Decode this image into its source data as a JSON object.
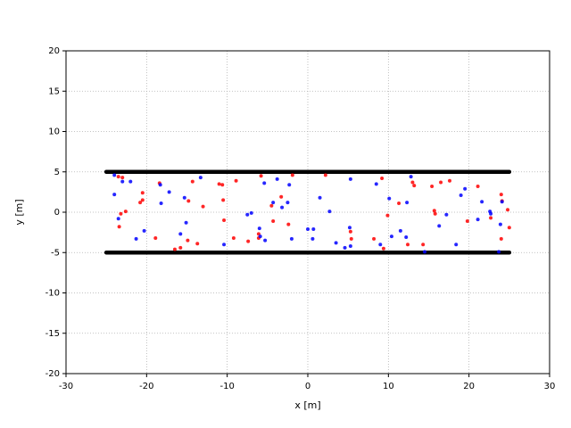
{
  "chart_data": {
    "type": "scatter",
    "xlabel": "x [m]",
    "ylabel": "y [m]",
    "xlim": [
      -30,
      30
    ],
    "ylim": [
      -20,
      20
    ],
    "xticks": [
      -30,
      -20,
      -10,
      0,
      10,
      20,
      30
    ],
    "yticks": [
      -20,
      -15,
      -10,
      -5,
      0,
      5,
      10,
      15,
      20
    ],
    "grid": true,
    "series": [
      {
        "color": "#000000",
        "line": true,
        "x": [
          -25,
          25
        ],
        "values": [
          5,
          5
        ]
      },
      {
        "color": "#000000",
        "line": true,
        "x": [
          -25,
          25
        ],
        "values": [
          -5,
          -5
        ]
      },
      {
        "color": "#ff0000",
        "x": [
          -23.5,
          -23.0,
          -23.2,
          -23.4,
          -22.6,
          -20.5,
          -20.5,
          -20.8,
          -18.9,
          -18.4,
          -16.5,
          -15.8,
          -14.9,
          -14.8,
          -14.3,
          -13.7,
          -13.0,
          -11.0,
          -10.6,
          -10.5,
          -10.4,
          -9.2,
          -8.9,
          -7.4,
          -6.1,
          -6.1,
          -5.8,
          -4.5,
          -4.3,
          -3.3,
          -2.4,
          -1.9,
          2.2,
          5.3,
          5.4,
          8.2,
          9.2,
          9.4,
          9.9,
          11.3,
          12.4,
          13.0,
          13.2,
          14.3,
          15.4,
          15.7,
          15.8,
          16.5,
          17.6,
          19.8,
          21.1,
          22.7,
          24.0,
          24.1,
          24.0,
          24.8,
          25.0
        ],
        "values": [
          4.4,
          4.3,
          -0.2,
          -1.8,
          0.1,
          2.4,
          1.5,
          1.2,
          -3.2,
          3.6,
          -4.6,
          -4.4,
          -3.5,
          1.4,
          3.8,
          -3.9,
          0.7,
          3.5,
          3.4,
          1.5,
          -1.0,
          -3.2,
          3.9,
          -3.6,
          -2.7,
          -3.2,
          4.5,
          0.8,
          -1.1,
          1.9,
          -1.5,
          4.6,
          4.6,
          -2.4,
          -3.3,
          -3.3,
          4.2,
          -4.5,
          -0.4,
          1.1,
          -4.0,
          3.7,
          3.3,
          -4.0,
          3.2,
          0.2,
          -0.2,
          3.7,
          3.9,
          -1.1,
          3.2,
          -0.7,
          2.2,
          1.4,
          -3.3,
          0.3,
          -1.9
        ]
      },
      {
        "color": "#0000ff",
        "x": [
          -24.0,
          -23.0,
          -23.5,
          -24.0,
          -22.0,
          -21.3,
          -20.3,
          -18.3,
          -18.2,
          -17.2,
          -15.8,
          -15.3,
          -15.1,
          -13.3,
          -10.4,
          -7.5,
          -7.0,
          -6.0,
          -5.9,
          -5.4,
          -5.3,
          -4.3,
          -3.8,
          -3.2,
          -2.5,
          -2.3,
          -2.0,
          0.0,
          0.7,
          0.6,
          1.5,
          2.7,
          3.5,
          4.6,
          5.2,
          5.3,
          5.3,
          8.5,
          9.0,
          10.1,
          10.4,
          11.5,
          12.2,
          12.3,
          12.8,
          14.5,
          16.3,
          17.2,
          18.4,
          19.0,
          19.5,
          21.6,
          21.1,
          22.6,
          22.7,
          23.9,
          24.1,
          23.7
        ],
        "values": [
          4.6,
          3.8,
          -0.8,
          2.2,
          3.8,
          -3.3,
          -2.3,
          3.4,
          1.1,
          2.5,
          -2.7,
          1.8,
          -1.3,
          4.3,
          -4.0,
          -0.3,
          -0.1,
          -2.0,
          -3.0,
          3.6,
          -3.5,
          1.2,
          4.1,
          0.6,
          1.2,
          3.4,
          -3.3,
          -2.1,
          -2.1,
          -3.3,
          1.8,
          0.1,
          -3.8,
          -4.4,
          -1.9,
          -4.2,
          4.1,
          3.5,
          -4.0,
          1.7,
          -3.0,
          -2.3,
          -3.1,
          1.2,
          4.4,
          -4.9,
          -1.7,
          -0.3,
          -4.0,
          2.1,
          2.9,
          1.3,
          -0.9,
          0.1,
          -0.2,
          -1.5,
          1.3,
          -4.9
        ]
      }
    ]
  }
}
